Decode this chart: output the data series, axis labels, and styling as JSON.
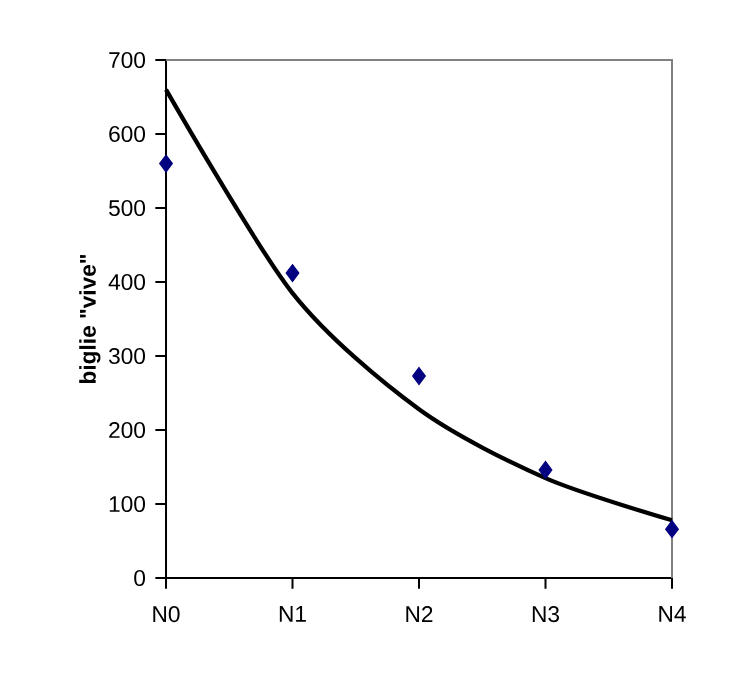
{
  "chart_data": {
    "type": "scatter",
    "ylabel": "biglie \"vive\"",
    "categories": [
      "N0",
      "N1",
      "N2",
      "N3",
      "N4"
    ],
    "ylim": [
      0,
      700
    ],
    "yticks": [
      0,
      100,
      200,
      300,
      400,
      500,
      600,
      700
    ],
    "grid": false,
    "series": [
      {
        "type": "line",
        "values": [
          660,
          385,
          228,
          135,
          78
        ],
        "color": "#000000",
        "marker": "none"
      },
      {
        "values": [
          560,
          412,
          273,
          146,
          66
        ],
        "color": "#000080",
        "marker": "diamond"
      }
    ]
  }
}
